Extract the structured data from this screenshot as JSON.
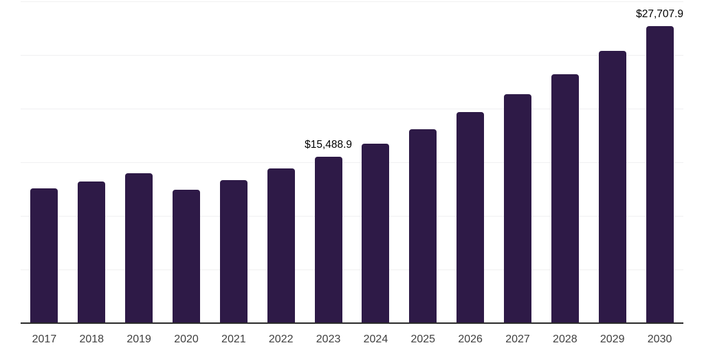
{
  "chart_data": {
    "type": "bar",
    "title": "",
    "xlabel": "",
    "ylabel": "",
    "categories": [
      "2017",
      "2018",
      "2019",
      "2020",
      "2021",
      "2022",
      "2023",
      "2024",
      "2025",
      "2026",
      "2027",
      "2028",
      "2029",
      "2030"
    ],
    "values": [
      12550,
      13200,
      14000,
      12420,
      13360,
      14450,
      15488.9,
      16750,
      18050,
      19650,
      21320,
      23230,
      25400,
      27707.9
    ],
    "bar_labels": {
      "2023": "$15,488.9",
      "2030": "$27,707.9"
    },
    "ylim": [
      0,
      30000
    ],
    "ytick_step": 5000,
    "grid": "horizontal",
    "legend": "none",
    "y_axis_tick_labels_visible": false,
    "colors": {
      "bar": "#2E1A47",
      "gridline": "#f0f0f1",
      "axis_line": "#2b2b2b",
      "tick_label": "#3f3f3f",
      "data_label": "#000000",
      "background": "#ffffff"
    }
  }
}
